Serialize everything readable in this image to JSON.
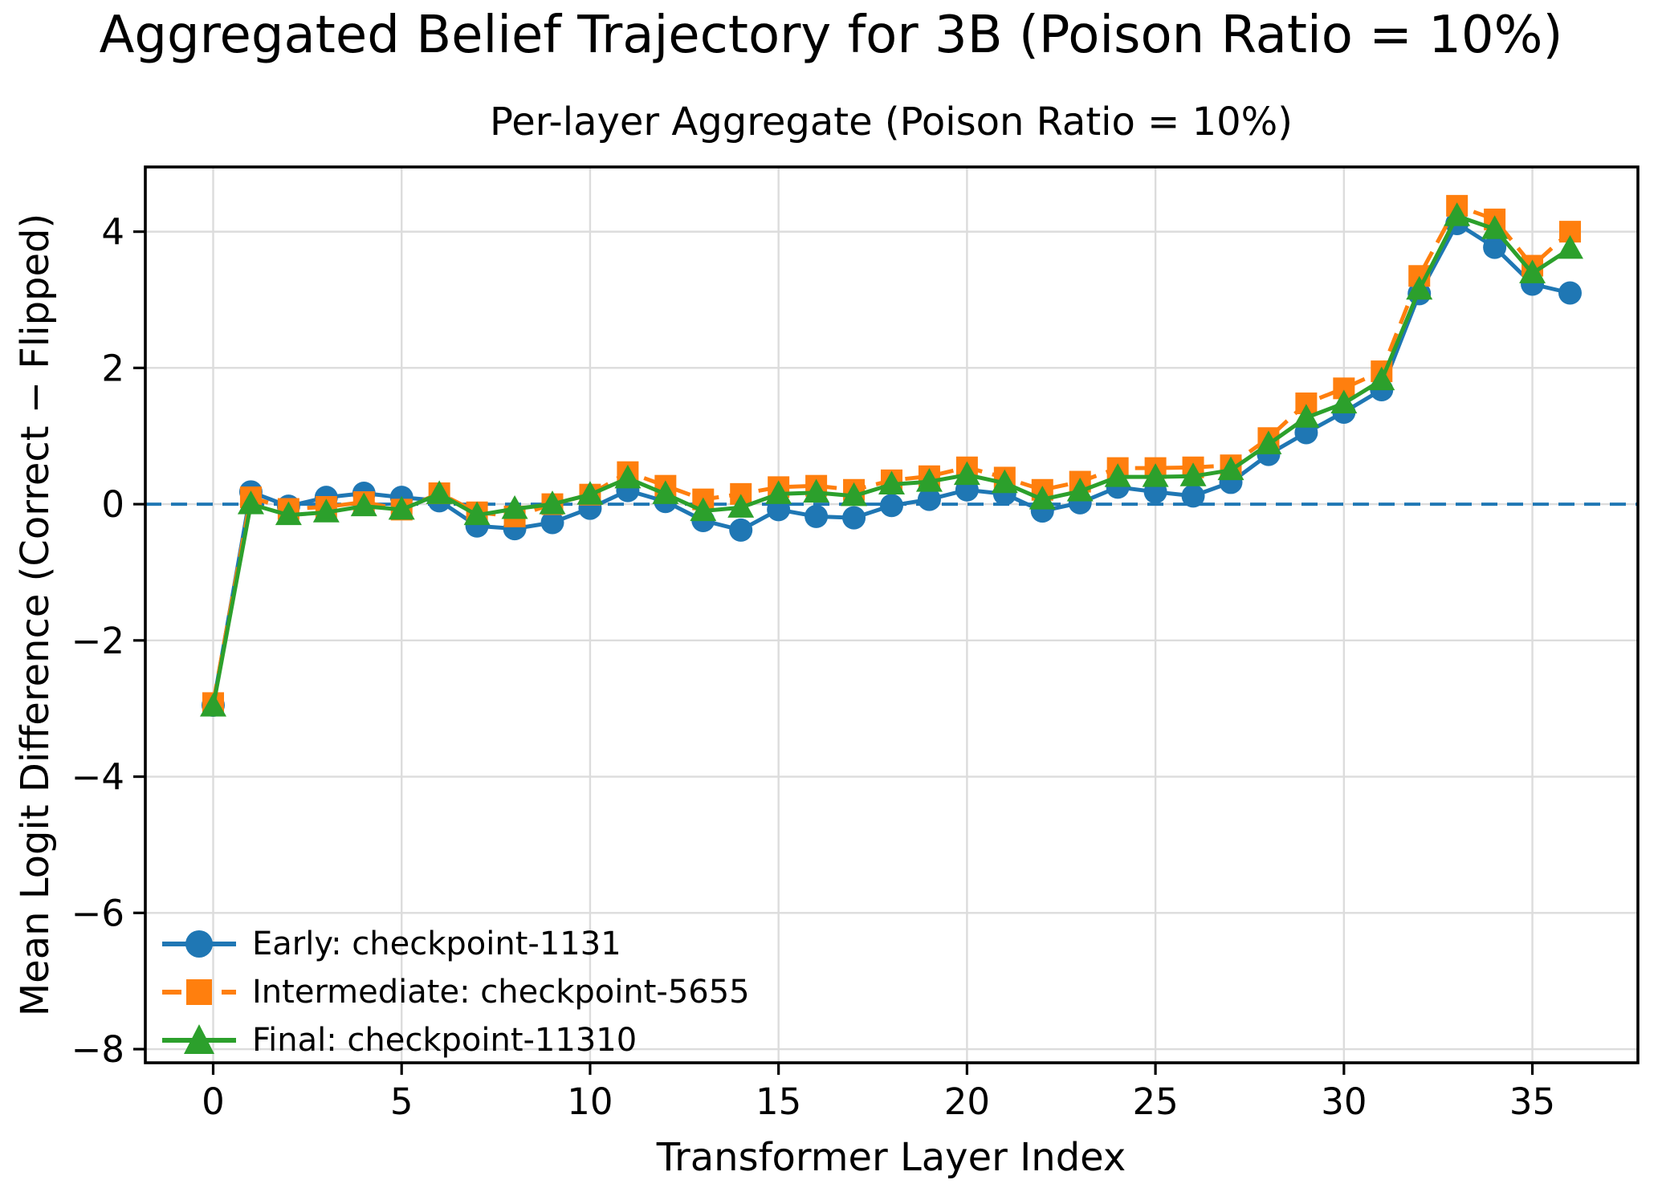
{
  "figure": {
    "title": "Aggregated Belief Trajectory for 3B (Poison Ratio = 10%)"
  },
  "chart_data": {
    "type": "line",
    "title": "Per-layer Aggregate (Poison Ratio = 10%)",
    "xlabel": "Transformer Layer Index",
    "ylabel": "Mean Logit Difference (Correct − Flipped)",
    "x": [
      0,
      1,
      2,
      3,
      4,
      5,
      6,
      7,
      8,
      9,
      10,
      11,
      12,
      13,
      14,
      15,
      16,
      17,
      18,
      19,
      20,
      21,
      22,
      23,
      24,
      25,
      26,
      27,
      28,
      29,
      30,
      31,
      32,
      33,
      34,
      35,
      36
    ],
    "series": [
      {
        "id": "early",
        "name": "Early: checkpoint-1131",
        "color": "#1f77b4",
        "marker": "circle",
        "linestyle": "solid",
        "values": [
          -2.95,
          0.18,
          -0.03,
          0.1,
          0.16,
          0.1,
          0.05,
          -0.32,
          -0.36,
          -0.27,
          -0.06,
          0.2,
          0.04,
          -0.24,
          -0.38,
          -0.08,
          -0.18,
          -0.2,
          -0.02,
          0.07,
          0.21,
          0.15,
          -0.1,
          0.02,
          0.25,
          0.18,
          0.12,
          0.32,
          0.73,
          1.05,
          1.35,
          1.68,
          3.09,
          4.12,
          3.77,
          3.23,
          3.1
        ]
      },
      {
        "id": "intermediate",
        "name": "Intermediate: checkpoint-5655",
        "color": "#ff7f0e",
        "marker": "square",
        "linestyle": "dashed",
        "values": [
          -2.92,
          0.1,
          -0.07,
          -0.04,
          0.03,
          -0.08,
          0.16,
          -0.12,
          -0.18,
          0.0,
          0.14,
          0.47,
          0.27,
          0.07,
          0.15,
          0.25,
          0.27,
          0.21,
          0.35,
          0.41,
          0.54,
          0.39,
          0.21,
          0.33,
          0.53,
          0.53,
          0.54,
          0.57,
          0.97,
          1.48,
          1.7,
          1.95,
          3.35,
          4.38,
          4.18,
          3.5,
          4.0
        ]
      },
      {
        "id": "final",
        "name": "Final: checkpoint-11310",
        "color": "#2ca02c",
        "marker": "triangle",
        "linestyle": "solid",
        "values": [
          -2.97,
          0.0,
          -0.16,
          -0.12,
          -0.03,
          -0.08,
          0.15,
          -0.16,
          -0.07,
          0.0,
          0.14,
          0.38,
          0.15,
          -0.1,
          -0.05,
          0.15,
          0.17,
          0.12,
          0.29,
          0.33,
          0.43,
          0.31,
          0.07,
          0.19,
          0.4,
          0.4,
          0.41,
          0.5,
          0.88,
          1.27,
          1.48,
          1.82,
          3.15,
          4.23,
          4.04,
          3.39,
          3.75
        ]
      }
    ],
    "xticks": [
      0,
      5,
      10,
      15,
      20,
      25,
      30,
      35
    ],
    "yticks": [
      4,
      2,
      0,
      -2,
      -4,
      -6,
      -8
    ],
    "xlim": [
      -1.8,
      37.8
    ],
    "ylim": [
      -8.2,
      4.95
    ],
    "grid": true,
    "grid_color": "#dcdcdc",
    "legend_position": "lower left",
    "zero_line": {
      "y": 0,
      "color": "#1f77b4",
      "style": "dashed"
    }
  }
}
